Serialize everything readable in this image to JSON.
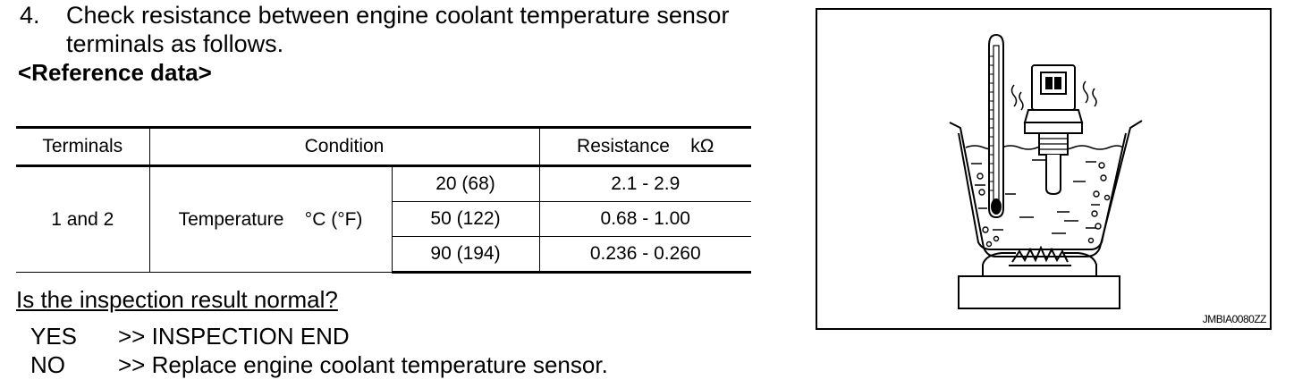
{
  "step": {
    "number": "4.",
    "line1": "Check resistance between engine coolant temperature sensor",
    "line2": "terminals as follows."
  },
  "reference_heading": "<Reference data>",
  "table": {
    "headers": {
      "terminals": "Terminals",
      "condition": "Condition",
      "resistance": "Resistance    kΩ"
    },
    "terminals": "1 and 2",
    "condition_label": "Temperature    °C (°F)",
    "rows": [
      {
        "temp": "20 (68)",
        "resistance": "2.1 - 2.9"
      },
      {
        "temp": "50 (122)",
        "resistance": "0.68 - 1.00"
      },
      {
        "temp": "90 (194)",
        "resistance": "0.236 - 0.260"
      }
    ]
  },
  "question": "Is the inspection result normal?",
  "answers": {
    "yes": {
      "label": "YES",
      "action": ">> INSPECTION END"
    },
    "no": {
      "label": "NO",
      "action": ">> Replace engine coolant temperature sensor."
    }
  },
  "figure": {
    "code": "JMBIA0080ZZ",
    "illustration": "thermometer-and-sensor-in-heated-water-pot"
  }
}
